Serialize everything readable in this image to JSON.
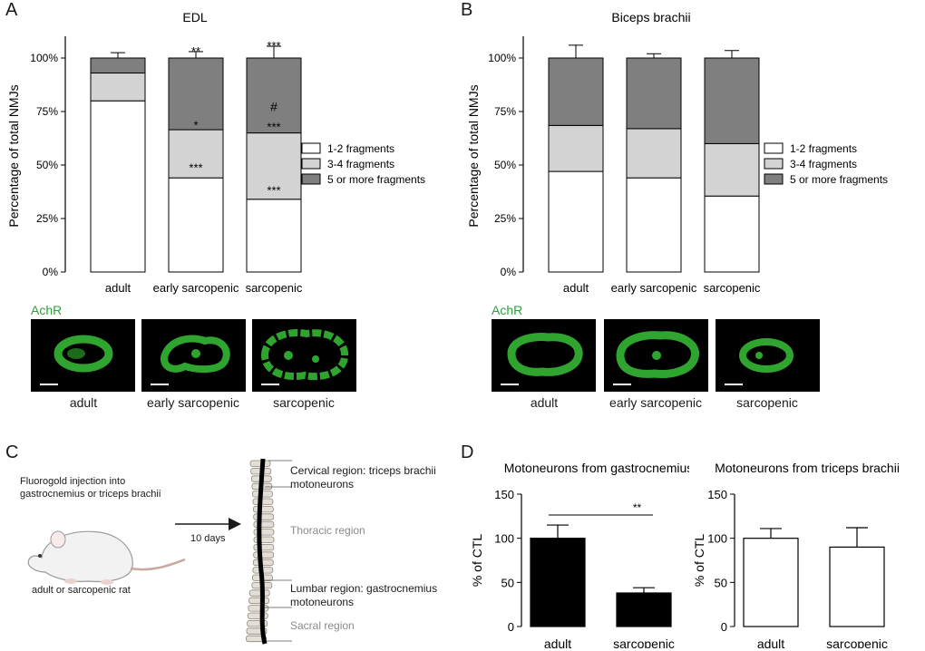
{
  "panels": {
    "A": {
      "letter": "A",
      "title": "EDL",
      "ylabel": "Percentage of total NMJs",
      "micro_label": "AchR",
      "micro_captions": [
        "adult",
        "early sarcopenic",
        "sarcopenic"
      ]
    },
    "B": {
      "letter": "B",
      "title": "Biceps brachii",
      "ylabel": "Percentage of total NMJs",
      "micro_label": "AchR",
      "micro_captions": [
        "adult",
        "early sarcopenic",
        "sarcopenic"
      ]
    },
    "C": {
      "letter": "C",
      "injection_text": "Fluorogold injection into gastrocnemius or triceps brachii",
      "arrow_label": "10 days",
      "rat_label": "adult or sarcopenic rat",
      "regions": {
        "cervical": "Cervical region: triceps brachii motoneurons",
        "thoracic": "Thoracic region",
        "lumbar": "Lumbar region: gastrocnemius motoneurons",
        "sacral": "Sacral region"
      }
    },
    "D": {
      "letter": "D"
    }
  },
  "chart_data": [
    {
      "type": "bar",
      "stacked": true,
      "title": "EDL",
      "ylabel": "Percentage of total NMJs",
      "categories": [
        "adult",
        "early sarcopenic",
        "sarcopenic"
      ],
      "yticks": [
        "0%",
        "25%",
        "50%",
        "75%",
        "100%"
      ],
      "ylim": [
        0,
        100
      ],
      "series": [
        {
          "name": "1-2 fragments",
          "color": "#ffffff",
          "values": [
            80,
            44,
            34
          ],
          "errors": [
            3.5,
            4.5,
            4
          ]
        },
        {
          "name": "3-4 fragments",
          "color": "#d3d3d3",
          "values": [
            13,
            22.5,
            31
          ],
          "errors": [
            1,
            2,
            2.5
          ]
        },
        {
          "name": "5 or more fragments",
          "color": "#7f7f7f",
          "values": [
            7,
            33.5,
            35
          ],
          "errors": [
            2.5,
            3,
            5.5
          ]
        }
      ],
      "annotations": [
        {
          "category": "early sarcopenic",
          "level": "bottom",
          "text": "***"
        },
        {
          "category": "early sarcopenic",
          "level": "middle",
          "text": "*"
        },
        {
          "category": "early sarcopenic",
          "level": "top",
          "text": "**"
        },
        {
          "category": "sarcopenic",
          "level": "bottom",
          "text": "***"
        },
        {
          "category": "sarcopenic",
          "level": "middle",
          "text": "***"
        },
        {
          "category": "sarcopenic",
          "level": "middle-hash",
          "text": "#"
        },
        {
          "category": "sarcopenic",
          "level": "top",
          "text": "***"
        }
      ],
      "legend": "right"
    },
    {
      "type": "bar",
      "stacked": true,
      "title": "Biceps brachii",
      "ylabel": "Percentage of total NMJs",
      "categories": [
        "adult",
        "early sarcopenic",
        "sarcopenic"
      ],
      "yticks": [
        "0%",
        "25%",
        "50%",
        "75%",
        "100%"
      ],
      "ylim": [
        0,
        100
      ],
      "series": [
        {
          "name": "1-2 fragments",
          "color": "#ffffff",
          "values": [
            47,
            44,
            35.5
          ],
          "errors": [
            5.5,
            3,
            3.5
          ]
        },
        {
          "name": "3-4 fragments",
          "color": "#d3d3d3",
          "values": [
            21.5,
            23,
            24.5
          ],
          "errors": [
            1.5,
            3,
            1.5
          ]
        },
        {
          "name": "5 or more fragments",
          "color": "#7f7f7f",
          "values": [
            31.5,
            33,
            40
          ],
          "errors": [
            6,
            2,
            3.5
          ]
        }
      ],
      "legend": "right"
    },
    {
      "type": "bar",
      "title": "Motoneurons from gastrocnemius",
      "ylabel": "% of CTL",
      "categories": [
        "adult",
        "sarcopenic"
      ],
      "values": [
        100,
        38
      ],
      "errors": [
        15,
        6
      ],
      "bar_color": "#000000",
      "ylim": [
        0,
        150
      ],
      "yticks": [
        "0",
        "50",
        "100",
        "150"
      ],
      "significance": "**"
    },
    {
      "type": "bar",
      "title": "Motoneurons from triceps brachii",
      "ylabel": "% of CTL",
      "categories": [
        "adult",
        "sarcopenic"
      ],
      "values": [
        100,
        90
      ],
      "errors": [
        11,
        22
      ],
      "bar_color": "#ffffff",
      "ylim": [
        0,
        150
      ],
      "yticks": [
        "0",
        "50",
        "100",
        "150"
      ]
    }
  ]
}
